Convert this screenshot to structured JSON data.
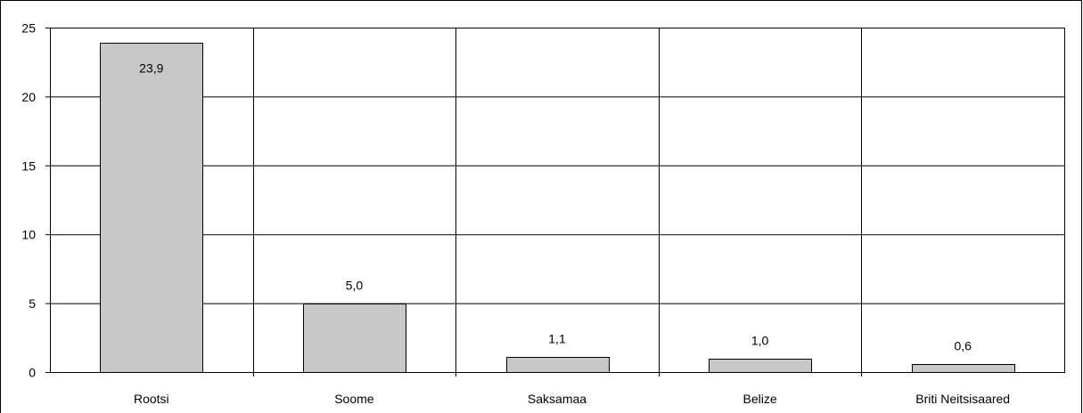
{
  "chart_data": {
    "type": "bar",
    "categories": [
      "Rootsi",
      "Soome",
      "Saksamaa",
      "Belize",
      "Briti Neitsisaared"
    ],
    "values": [
      23.9,
      5.0,
      1.1,
      1.0,
      0.6
    ],
    "data_labels": [
      "23,9",
      "5,0",
      "1,1",
      "1,0",
      "0,6"
    ],
    "title": "",
    "xlabel": "",
    "ylabel": "",
    "ylim": [
      0,
      25
    ],
    "yticks": [
      0,
      5,
      10,
      15,
      20,
      25
    ],
    "ytick_labels": [
      "0",
      "5",
      "10",
      "15",
      "20",
      "25"
    ],
    "grid": true,
    "legend": "none",
    "colors": {
      "bar_fill": "#c8c8c8",
      "bar_stroke": "#000000",
      "grid": "#000000",
      "frame": "#000000",
      "background": "#ffffff"
    }
  }
}
